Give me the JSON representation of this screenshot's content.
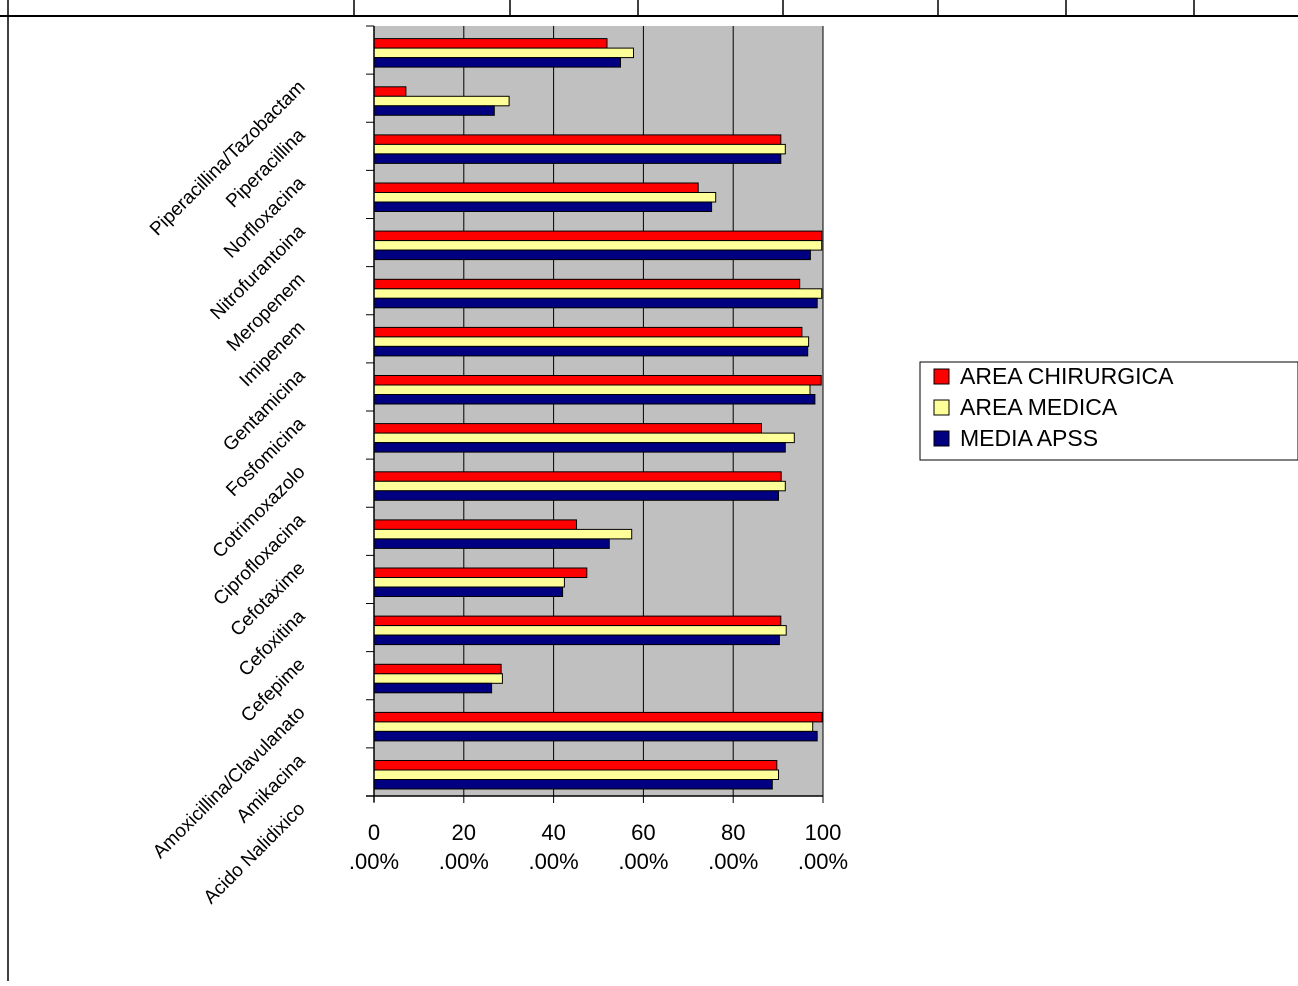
{
  "chart_data": {
    "type": "bar",
    "orientation": "horizontal",
    "categories": [
      "Acido Nalidixico",
      "Amikacina",
      "Amoxicillina/Clavulanato",
      "Cefepime",
      "Cefoxitina",
      "Cefotaxime",
      "Ciprofloxacina",
      "Cotrimoxazolo",
      "Fosfomicina",
      "Gentamicina",
      "Imipenem",
      "Meropenem",
      "Nitrofurantoina",
      "Norfloxacina",
      "Piperacillina",
      "Piperacillina/Tazobactam"
    ],
    "series": [
      {
        "name": "AREA CHIRURGICA",
        "color": "#ff0000",
        "values": [
          89.7,
          99.8,
          28.3,
          90.6,
          47.4,
          45.1,
          90.7,
          86.3,
          99.6,
          95.3,
          94.8,
          99.7,
          72.2,
          90.6,
          7.1,
          51.9
        ]
      },
      {
        "name": "AREA MEDICA",
        "color": "#ffff99",
        "values": [
          90.1,
          97.7,
          28.6,
          91.8,
          42.4,
          57.4,
          91.6,
          93.6,
          97.1,
          96.8,
          99.7,
          99.7,
          76.1,
          91.6,
          30.1,
          57.8
        ]
      },
      {
        "name": "MEDIA APSS",
        "color": "#000080",
        "values": [
          88.7,
          98.7,
          26.2,
          90.3,
          42.0,
          52.4,
          90.1,
          91.6,
          98.2,
          96.6,
          98.7,
          97.2,
          75.2,
          90.6,
          26.8,
          54.9
        ]
      }
    ],
    "x_ticks": [
      "0.00%",
      "20.00%",
      "40.00%",
      "60.00%",
      "80.00%",
      "100.00%"
    ],
    "xlim": [
      0,
      100
    ],
    "grid": true,
    "legend_position": "right",
    "plot_background": "#c0c0c0"
  }
}
